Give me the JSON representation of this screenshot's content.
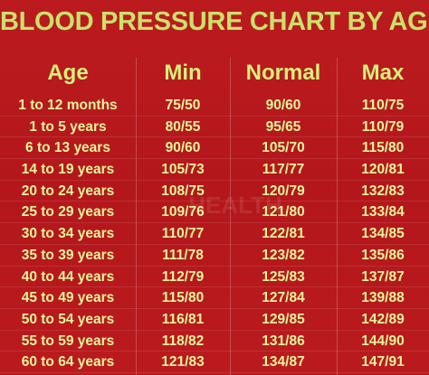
{
  "title": "BLOOD PRESSURE CHART BY AGE",
  "headers": {
    "age": "Age",
    "min": "Min",
    "normal": "Normal",
    "max": "Max"
  },
  "rows": [
    {
      "age": "1 to 12 months",
      "min": "75/50",
      "normal": "90/60",
      "max": "110/75"
    },
    {
      "age": "1 to 5 years",
      "min": "80/55",
      "normal": "95/65",
      "max": "110/79"
    },
    {
      "age": "6 to 13 years",
      "min": "90/60",
      "normal": "105/70",
      "max": "115/80"
    },
    {
      "age": "14 to 19 years",
      "min": "105/73",
      "normal": "117/77",
      "max": "120/81"
    },
    {
      "age": "20 to 24 years",
      "min": "108/75",
      "normal": "120/79",
      "max": "132/83"
    },
    {
      "age": "25 to 29 years",
      "min": "109/76",
      "normal": "121/80",
      "max": "133/84"
    },
    {
      "age": "30 to 34 years",
      "min": "110/77",
      "normal": "122/81",
      "max": "134/85"
    },
    {
      "age": "35 to 39 years",
      "min": "111/78",
      "normal": "123/82",
      "max": "135/86"
    },
    {
      "age": "40 to 44 years",
      "min": "112/79",
      "normal": "125/83",
      "max": "137/87"
    },
    {
      "age": "45 to 49 years",
      "min": "115/80",
      "normal": "127/84",
      "max": "139/88"
    },
    {
      "age": "50 to 54 years",
      "min": "116/81",
      "normal": "129/85",
      "max": "142/89"
    },
    {
      "age": "55 to 59 years",
      "min": "118/82",
      "normal": "131/86",
      "max": "144/90"
    },
    {
      "age": "60 to 64 years",
      "min": "121/83",
      "normal": "134/87",
      "max": "147/91"
    }
  ],
  "colors": {
    "background": "#b81a1e",
    "title": "#c8e26a",
    "header": "#d6f07a",
    "cell_text": "#e6f59a"
  },
  "watermark": "HEALTH"
}
